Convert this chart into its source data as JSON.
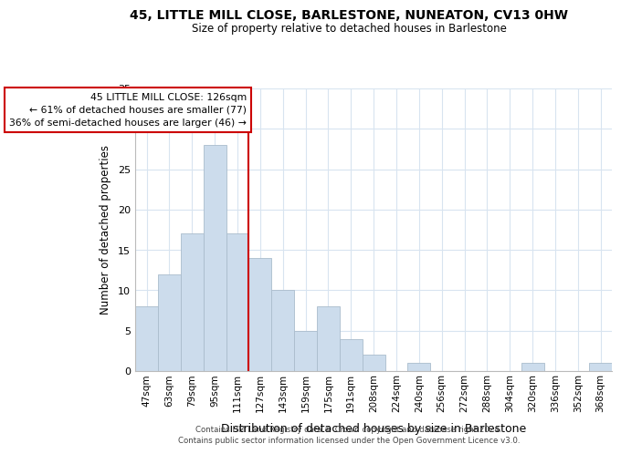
{
  "title": "45, LITTLE MILL CLOSE, BARLESTONE, NUNEATON, CV13 0HW",
  "subtitle": "Size of property relative to detached houses in Barlestone",
  "xlabel": "Distribution of detached houses by size in Barlestone",
  "ylabel": "Number of detached properties",
  "footer_line1": "Contains HM Land Registry data © Crown copyright and database right 2024.",
  "footer_line2": "Contains public sector information licensed under the Open Government Licence v3.0.",
  "bin_labels": [
    "47sqm",
    "63sqm",
    "79sqm",
    "95sqm",
    "111sqm",
    "127sqm",
    "143sqm",
    "159sqm",
    "175sqm",
    "191sqm",
    "208sqm",
    "224sqm",
    "240sqm",
    "256sqm",
    "272sqm",
    "288sqm",
    "304sqm",
    "320sqm",
    "336sqm",
    "352sqm",
    "368sqm"
  ],
  "bar_values": [
    8,
    12,
    17,
    28,
    17,
    14,
    10,
    5,
    8,
    4,
    2,
    0,
    1,
    0,
    0,
    0,
    0,
    1,
    0,
    0,
    1
  ],
  "bar_color": "#ccdcec",
  "bar_edge_color": "#aabccc",
  "vline_index": 5,
  "annotation_line1": "45 LITTLE MILL CLOSE: 126sqm",
  "annotation_line2": "← 61% of detached houses are smaller (77)",
  "annotation_line3": "36% of semi-detached houses are larger (46) →",
  "vline_color": "#cc0000",
  "annotation_box_edge": "#cc0000",
  "ylim": [
    0,
    35
  ],
  "yticks": [
    0,
    5,
    10,
    15,
    20,
    25,
    30,
    35
  ],
  "background_color": "#ffffff",
  "grid_color": "#d8e4f0"
}
